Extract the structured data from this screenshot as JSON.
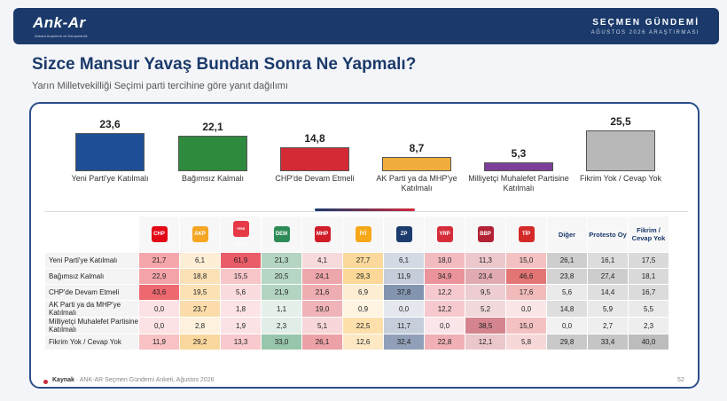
{
  "header": {
    "logo": "Ank-Ar",
    "logo_sub": "Ankara Araştırma ve Danışmanlık",
    "title": "SEÇMEN GÜNDEMİ",
    "subtitle": "AĞUSTOS 2026 ARAŞTIRMASI"
  },
  "title": "Sizce Mansur Yavaş Bundan Sonra Ne Yapmalı?",
  "subtitle": "Yarın Milletvekilliği Seçimi parti tercihine göre yanıt dağılımı",
  "footer": {
    "source_label": "Kaynak",
    "source_text": "· ANK-AR Seçmen Gündemi Anketi, Ağustos 2026",
    "page": "52"
  },
  "chart_data": [
    {
      "type": "bar",
      "categories": [
        "Yeni Parti'ye Katılmalı",
        "Bağımsız Kalmalı",
        "CHP'de Devam Etmeli",
        "AK Parti ya da MHP'ye Katılmalı",
        "Milliyetçi Muhalefet Partisine Katılmalı",
        "Fikrim Yok / Cevap Yok"
      ],
      "values": [
        23.6,
        22.1,
        14.8,
        8.7,
        5.3,
        25.5
      ],
      "colors": [
        "#1e4f96",
        "#2e8b3d",
        "#d42a36",
        "#f0ad3c",
        "#7b3f9a",
        "#b8b8b8"
      ]
    },
    {
      "type": "table",
      "columns": [
        "CHP",
        "AKP",
        "YENİ PARTİ",
        "DEM",
        "MHP",
        "İYİ",
        "ZP",
        "YRP",
        "BBP",
        "TİP",
        "Diğer",
        "Protesto Oy",
        "Fikrim / Cevap Yok"
      ],
      "column_colors": [
        "#e30a17",
        "#f5a623",
        "#e63946",
        "#2e8b57",
        "#d11d2a",
        "#f6a81a",
        "#1c3c6e",
        "#d62d3b",
        "#b22234",
        "#d42a2a",
        "",
        "",
        ""
      ],
      "rows": [
        {
          "label": "Yeni Parti'ye Katılmalı",
          "values": [
            21.7,
            6.1,
            61.9,
            21.3,
            4.1,
            27.7,
            6.1,
            18.0,
            11.3,
            15.0,
            26.1,
            16.1,
            17.5
          ]
        },
        {
          "label": "Bağımsız Kalmalı",
          "values": [
            22.9,
            18.8,
            15.5,
            20.5,
            24.1,
            29.3,
            11.9,
            34.9,
            23.4,
            46.6,
            23.8,
            27.4,
            18.1
          ]
        },
        {
          "label": "CHP'de Devam Etmeli",
          "values": [
            43.6,
            19.5,
            5.6,
            21.9,
            21.6,
            6.9,
            37.8,
            12.2,
            9.5,
            17.6,
            5.6,
            14.4,
            16.7
          ]
        },
        {
          "label": "AK Parti ya da MHP'ye Katılmalı",
          "values": [
            0.0,
            23.7,
            1.8,
            1.1,
            19.0,
            0.9,
            0.0,
            12.2,
            5.2,
            0.0,
            14.8,
            5.9,
            5.5
          ]
        },
        {
          "label": "Milliyetçi Muhalefet Partisine Katılmalı",
          "values": [
            0.0,
            2.8,
            1.9,
            2.3,
            5.1,
            22.5,
            11.7,
            0.0,
            38.5,
            15.0,
            0.0,
            2.7,
            2.3
          ]
        },
        {
          "label": "Fikrim Yok / Cevap Yok",
          "values": [
            11.9,
            29.2,
            13.3,
            33.0,
            26.1,
            12.6,
            32.4,
            22.8,
            12.1,
            5.8,
            29.8,
            33.4,
            40.0
          ]
        }
      ]
    }
  ]
}
